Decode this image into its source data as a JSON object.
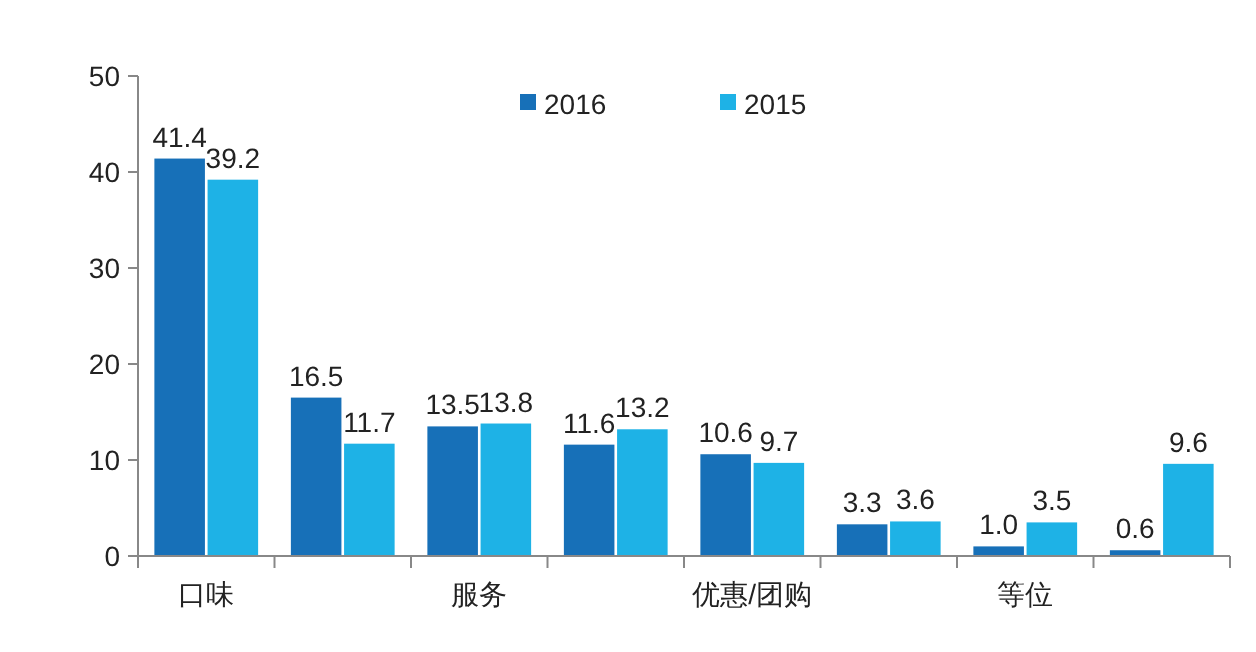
{
  "chart_data": {
    "type": "bar",
    "categories": [
      "口味",
      null,
      "服务",
      null,
      "优惠/团购",
      null,
      "等位",
      null
    ],
    "series": [
      {
        "name": "2016",
        "color": "#1770b8",
        "values": [
          41.4,
          16.5,
          13.5,
          11.6,
          10.6,
          3.3,
          1.0,
          0.6
        ],
        "value_labels": [
          "41.4",
          "16.5",
          "13.5",
          "11.6",
          "10.6",
          "3.3",
          "1.0",
          "0.6"
        ]
      },
      {
        "name": "2015",
        "color": "#1eb2e6",
        "values": [
          39.2,
          11.7,
          13.8,
          13.2,
          9.7,
          3.6,
          3.5,
          9.6
        ],
        "value_labels": [
          "39.2",
          "11.7",
          "13.8",
          "13.2",
          "9.7",
          "3.6",
          "3.5",
          "9.6"
        ]
      }
    ],
    "ylim": [
      0,
      50
    ],
    "yticks": [
      0,
      10,
      20,
      30,
      40,
      50
    ],
    "grid": false,
    "legend": "top"
  }
}
